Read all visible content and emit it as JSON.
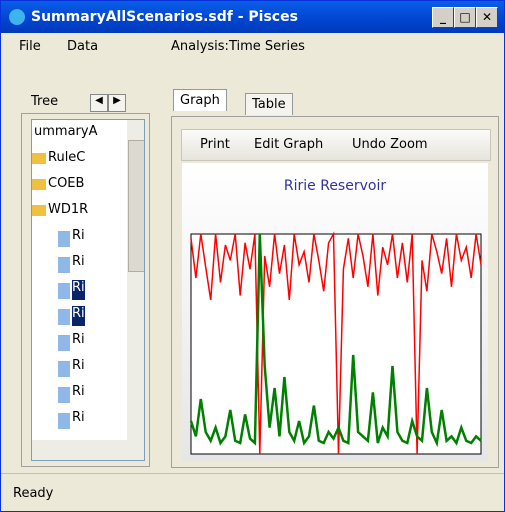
{
  "window": {
    "title": "SummaryAllScenarios.sdf - Pisces"
  },
  "menu": [
    "File",
    "Data",
    "Analysis:Time Series"
  ],
  "left_panel": {
    "tab": "Tree",
    "tree": [
      {
        "label": "ummaryA",
        "selected": false
      },
      {
        "label": "RuleC",
        "selected": false
      },
      {
        "label": "COEB",
        "selected": false
      },
      {
        "label": "WD1R",
        "selected": false
      },
      {
        "label": "Ri",
        "selected": false
      },
      {
        "label": "Ri",
        "selected": false
      },
      {
        "label": "Ri",
        "selected": true
      },
      {
        "label": "Ri",
        "selected": true
      },
      {
        "label": "Ri",
        "selected": false
      },
      {
        "label": "Ri",
        "selected": false
      },
      {
        "label": "Ri",
        "selected": false
      },
      {
        "label": "Ri",
        "selected": false
      }
    ]
  },
  "tabs": [
    "Graph",
    "Table"
  ],
  "toolbar": [
    "Print",
    "Edit Graph",
    "Undo Zoom"
  ],
  "chart_data": {
    "type": "line",
    "title": "Ririe Reservoir",
    "ylim": [
      0,
      100
    ],
    "series": [
      {
        "color": "#ff0000",
        "values": [
          98,
          80,
          100,
          85,
          70,
          100,
          78,
          95,
          88,
          100,
          72,
          96,
          84,
          100,
          0,
          90,
          76,
          100,
          82,
          95,
          70,
          100,
          86,
          92,
          78,
          100,
          88,
          74,
          96,
          100,
          0,
          84,
          98,
          80,
          100,
          90,
          76,
          100,
          72,
          94,
          86,
          100,
          80,
          96,
          78,
          100,
          0,
          88,
          74,
          100,
          92,
          82,
          98,
          76,
          100,
          88,
          94,
          80,
          100,
          86
        ]
      },
      {
        "color": "#008000",
        "values": [
          15,
          8,
          25,
          10,
          6,
          12,
          5,
          8,
          20,
          6,
          5,
          18,
          7,
          5,
          100,
          40,
          12,
          30,
          8,
          35,
          10,
          6,
          15,
          5,
          8,
          22,
          6,
          5,
          10,
          7,
          12,
          6,
          5,
          45,
          10,
          8,
          6,
          28,
          5,
          12,
          8,
          40,
          10,
          6,
          5,
          15,
          8,
          6,
          30,
          10,
          5,
          20,
          6,
          8,
          5,
          12,
          6,
          5,
          8,
          6
        ]
      }
    ]
  },
  "status": "Ready"
}
